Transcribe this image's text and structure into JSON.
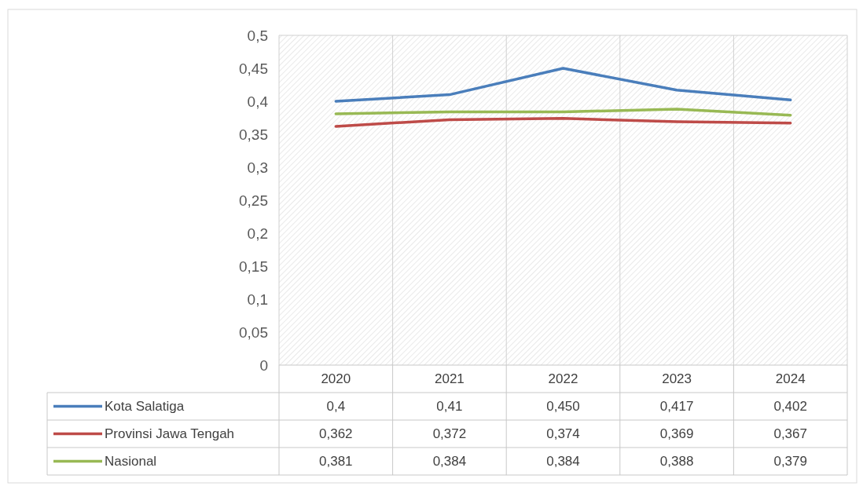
{
  "chart_data": {
    "type": "line",
    "categories": [
      "2020",
      "2021",
      "2022",
      "2023",
      "2024"
    ],
    "series": [
      {
        "name": "Kota Salatiga",
        "color": "#4a7ebb",
        "values": [
          0.4,
          0.41,
          0.45,
          0.417,
          0.402
        ],
        "value_labels": [
          "0,4",
          "0,41",
          "0,450",
          "0,417",
          "0,402"
        ]
      },
      {
        "name": "Provinsi Jawa Tengah",
        "color": "#be4b48",
        "values": [
          0.362,
          0.372,
          0.374,
          0.369,
          0.367
        ],
        "value_labels": [
          "0,362",
          "0,372",
          "0,374",
          "0,369",
          "0,367"
        ]
      },
      {
        "name": "Nasional",
        "color": "#98b954",
        "values": [
          0.381,
          0.384,
          0.384,
          0.388,
          0.379
        ],
        "value_labels": [
          "0,381",
          "0,384",
          "0,384",
          "0,388",
          "0,379"
        ]
      }
    ],
    "legend": "bottom left",
    "ylim": [
      0,
      0.5
    ],
    "yticks": [
      {
        "value": 0,
        "label": "0"
      },
      {
        "value": 0.05,
        "label": "0,05"
      },
      {
        "value": 0.1,
        "label": "0,1"
      },
      {
        "value": 0.15,
        "label": "0,15"
      },
      {
        "value": 0.2,
        "label": "0,2"
      },
      {
        "value": 0.25,
        "label": "0,25"
      },
      {
        "value": 0.3,
        "label": "0,3"
      },
      {
        "value": 0.35,
        "label": "0,35"
      },
      {
        "value": 0.4,
        "label": "0,4"
      },
      {
        "value": 0.45,
        "label": "0,45"
      },
      {
        "value": 0.5,
        "label": "0,5"
      }
    ]
  }
}
